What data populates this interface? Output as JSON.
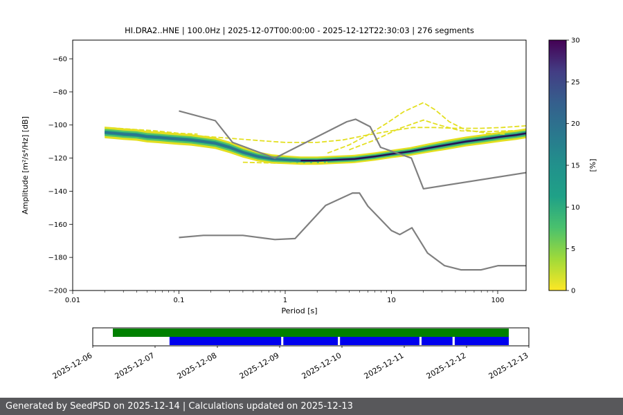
{
  "chart_data": {
    "type": "heatmap",
    "title": "HI.DRA2..HNE | 100.0Hz | 2025-12-07T00:00:00 - 2025-12-12T22:30:03 | 276 segments",
    "xlabel": "Period [s]",
    "ylabel": "Amplitude [m²/s⁴/Hz] [dB]",
    "xscale": "log",
    "xlim": [
      0.01,
      185
    ],
    "ylim": [
      -200,
      -48.7
    ],
    "xticks": [
      0.01,
      0.1,
      1,
      10,
      100
    ],
    "xtick_labels": [
      "0.01",
      "0.1",
      "1",
      "10",
      "100"
    ],
    "yticks": [
      -200,
      -180,
      -160,
      -140,
      -120,
      -100,
      -80,
      -60
    ],
    "colorbar": {
      "label": "[%]",
      "min": 0,
      "max": 30,
      "ticks": [
        0,
        5,
        10,
        15,
        20,
        25,
        30
      ],
      "colors_low_to_high": [
        "#fde725",
        "#a0da39",
        "#4ac16d",
        "#1fa187",
        "#21918c",
        "#2a788e",
        "#355f8d",
        "#433d84",
        "#440154"
      ]
    },
    "ppsd_band": {
      "comment": "mode_db = highest-probability PSD level per period; halfwidth = spread of distribution in dB",
      "periods": [
        0.02,
        0.025,
        0.03,
        0.04,
        0.05,
        0.065,
        0.08,
        0.1,
        0.13,
        0.17,
        0.22,
        0.3,
        0.4,
        0.55,
        0.75,
        1.0,
        1.4,
        2.0,
        3.0,
        4.5,
        7.0,
        10,
        15,
        22,
        33,
        50,
        75,
        110,
        150,
        185
      ],
      "mode_db": [
        -104.5,
        -105,
        -105.5,
        -106,
        -107,
        -107.5,
        -108,
        -108.5,
        -109,
        -110,
        -111,
        -113.5,
        -116.5,
        -119,
        -120.5,
        -121,
        -121.5,
        -121.5,
        -121,
        -120.5,
        -119,
        -117.5,
        -116,
        -114,
        -112,
        -110,
        -108.5,
        -107,
        -106,
        -105
      ],
      "halfwidth_db": [
        3.5,
        3.5,
        3.5,
        3.5,
        3.5,
        3.5,
        3.5,
        3.5,
        3.5,
        3.5,
        3.5,
        3.5,
        3.2,
        3.0,
        2.8,
        2.6,
        2.5,
        2.5,
        2.5,
        2.5,
        2.5,
        2.5,
        2.6,
        2.8,
        3.0,
        3.0,
        3.0,
        3.0,
        3.0,
        3.0
      ],
      "colors": {
        "outer": "#e3df20",
        "mid": "#54c568",
        "inner": "#21918c",
        "core_short": "#2c728e",
        "core_long": "#27104e"
      }
    },
    "outlier_curves": [
      {
        "name": "low-probability-upper-line",
        "color": "#e3df20",
        "points": [
          [
            0.15,
            -106.5
          ],
          [
            0.3,
            -108
          ],
          [
            0.6,
            -109.5
          ],
          [
            1,
            -110.5
          ],
          [
            2,
            -110.5
          ],
          [
            3.5,
            -109
          ],
          [
            6,
            -106
          ],
          [
            10,
            -103.5
          ],
          [
            16,
            -101.5
          ],
          [
            25,
            -101.5
          ],
          [
            40,
            -102
          ],
          [
            70,
            -102
          ],
          [
            110,
            -101.5
          ],
          [
            185,
            -100.5
          ]
        ]
      },
      {
        "name": "microseism-peak-outlier",
        "color": "#e3df20",
        "points": [
          [
            2.5,
            -117
          ],
          [
            4,
            -112
          ],
          [
            6,
            -106
          ],
          [
            9,
            -99
          ],
          [
            13,
            -92
          ],
          [
            20,
            -86.5
          ],
          [
            26,
            -91
          ],
          [
            35,
            -98
          ],
          [
            50,
            -103
          ],
          [
            80,
            -105
          ],
          [
            120,
            -105.5
          ]
        ]
      },
      {
        "name": "secondary-peak-outlier",
        "color": "#e3df20",
        "points": [
          [
            4,
            -115
          ],
          [
            7,
            -109
          ],
          [
            12,
            -102
          ],
          [
            20,
            -97
          ],
          [
            28,
            -100
          ],
          [
            45,
            -103.5
          ],
          [
            80,
            -104
          ],
          [
            130,
            -103.5
          ],
          [
            185,
            -103
          ]
        ]
      },
      {
        "name": "lower-outlier",
        "color": "#e3df20",
        "points": [
          [
            0.4,
            -122.5
          ],
          [
            0.8,
            -123
          ],
          [
            1.5,
            -123
          ],
          [
            2.5,
            -122.5
          ]
        ]
      },
      {
        "name": "short-period-upper-outlier",
        "color": "#e3df20",
        "points": [
          [
            0.02,
            -101.5
          ],
          [
            0.035,
            -102.5
          ],
          [
            0.06,
            -103.5
          ],
          [
            0.1,
            -105
          ],
          [
            0.15,
            -105.5
          ]
        ]
      }
    ],
    "noise_models": {
      "color": "#7f7f7f",
      "high": [
        [
          0.1,
          -91.5
        ],
        [
          0.22,
          -97.4
        ],
        [
          0.32,
          -110.5
        ],
        [
          0.8,
          -120.0
        ],
        [
          3.8,
          -98.0
        ],
        [
          4.6,
          -96.5
        ],
        [
          6.3,
          -101.0
        ],
        [
          7.9,
          -113.5
        ],
        [
          15.4,
          -120.0
        ],
        [
          20.0,
          -138.5
        ],
        [
          185,
          -128.8
        ]
      ],
      "low": [
        [
          0.1,
          -168.0
        ],
        [
          0.17,
          -166.7
        ],
        [
          0.4,
          -166.7
        ],
        [
          0.8,
          -169.2
        ],
        [
          1.24,
          -168.6
        ],
        [
          2.4,
          -148.6
        ],
        [
          4.3,
          -141.1
        ],
        [
          5.0,
          -141.1
        ],
        [
          6.0,
          -149.0
        ],
        [
          10.0,
          -163.8
        ],
        [
          12.0,
          -166.2
        ],
        [
          15.6,
          -162.1
        ],
        [
          21.9,
          -177.4
        ],
        [
          31.6,
          -185.0
        ],
        [
          45.0,
          -187.5
        ],
        [
          70.0,
          -187.5
        ],
        [
          101.0,
          -185.0
        ],
        [
          185,
          -185.0
        ]
      ]
    }
  },
  "timeline": {
    "labels": [
      "2025-12-06",
      "2025-12-07",
      "2025-12-08",
      "2025-12-09",
      "2025-12-10",
      "2025-12-11",
      "2025-12-12",
      "2025-12-13"
    ],
    "availability_color": "#008000",
    "coverage_color": "#0000ee",
    "availability": {
      "start_frac": 0.046,
      "end_frac": 0.954
    },
    "coverage_segments": [
      [
        0.176,
        0.432
      ],
      [
        0.437,
        0.562
      ],
      [
        0.567,
        0.749
      ],
      [
        0.754,
        0.825
      ],
      [
        0.83,
        0.954
      ]
    ]
  },
  "footer": {
    "text": "Generated by SeedPSD on 2025-12-14 | Calculations updated on 2025-12-13",
    "background": "#58585b",
    "text_color": "#ffffff"
  }
}
